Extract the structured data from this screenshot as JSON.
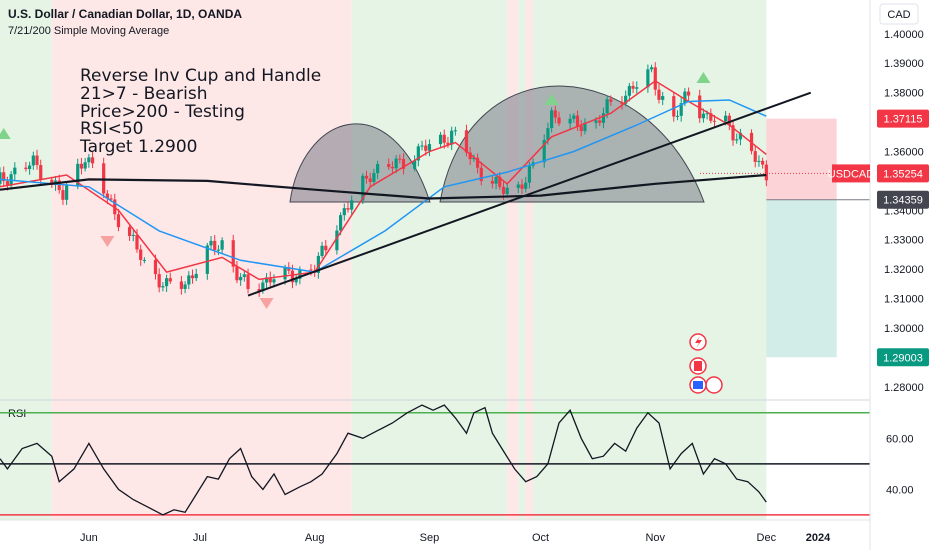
{
  "header": {
    "title": "U.S. Dollar / Canadian Dollar, 1D, OANDA",
    "indicator": "7/21/200 Simple Moving Average"
  },
  "currency": "CAD",
  "annotation_lines": [
    "Reverse Inv Cup and Handle",
    "21>7 - Bearish",
    "Price>200 - Testing",
    "RSI<50",
    "Target 1.2900"
  ],
  "price_axis": {
    "ticks": [
      "1.40000",
      "1.39000",
      "1.38000",
      "1.36000",
      "1.34000",
      "1.33000",
      "1.32000",
      "1.31000",
      "1.30000",
      "1.28000"
    ]
  },
  "price_tags": [
    {
      "label": "1.37115",
      "color": "#f23645"
    },
    {
      "symbol": "USDCAD",
      "label": "1.35254",
      "color": "#f23645"
    },
    {
      "label": "1.34359",
      "color": "#434651"
    },
    {
      "label": "1.29003",
      "color": "#089981"
    }
  ],
  "rsi": {
    "label": "RSI",
    "ticks": [
      "60.00",
      "40.00"
    ]
  },
  "time_axis": [
    "Jun",
    "Jul",
    "Aug",
    "Sep",
    "Oct",
    "Nov",
    "Dec",
    "2024"
  ],
  "colors": {
    "bull": "#089981",
    "bear": "#f23645",
    "sma7": "#f23645",
    "sma21": "#2196f3",
    "sma200": "#131722",
    "bg_bull": "#e6f4e6",
    "bg_bear": "#fde7e7"
  },
  "chart_data": [
    {
      "type": "candlestick",
      "title": "U.S. Dollar / Canadian Dollar, 1D, OANDA",
      "symbol": "USDCAD",
      "x_range": [
        "2023-05-08",
        "2023-12-29"
      ],
      "ylim": [
        1.2755,
        1.4115
      ],
      "grid": false,
      "close_series": [
        {
          "date": "2023-05-08",
          "close": 1.35
        },
        {
          "date": "2023-05-12",
          "close": 1.353
        },
        {
          "date": "2023-05-17",
          "close": 1.356
        },
        {
          "date": "2023-05-22",
          "close": 1.35
        },
        {
          "date": "2023-05-25",
          "close": 1.3445
        },
        {
          "date": "2023-05-31",
          "close": 1.359
        },
        {
          "date": "2023-06-06",
          "close": 1.344
        },
        {
          "date": "2023-06-12",
          "close": 1.331
        },
        {
          "date": "2023-06-16",
          "close": 1.322
        },
        {
          "date": "2023-06-22",
          "close": 1.314
        },
        {
          "date": "2023-06-27",
          "close": 1.315
        },
        {
          "date": "2023-07-03",
          "close": 1.326
        },
        {
          "date": "2023-07-07",
          "close": 1.329
        },
        {
          "date": "2023-07-11",
          "close": 1.3185
        },
        {
          "date": "2023-07-14",
          "close": 1.313
        },
        {
          "date": "2023-07-20",
          "close": 1.317
        },
        {
          "date": "2023-07-26",
          "close": 1.318
        },
        {
          "date": "2023-08-01",
          "close": 1.32
        },
        {
          "date": "2023-08-07",
          "close": 1.336
        },
        {
          "date": "2023-08-11",
          "close": 1.343
        },
        {
          "date": "2023-08-16",
          "close": 1.353
        },
        {
          "date": "2023-08-22",
          "close": 1.355
        },
        {
          "date": "2023-08-28",
          "close": 1.359
        },
        {
          "date": "2023-09-01",
          "close": 1.362
        },
        {
          "date": "2023-09-07",
          "close": 1.366
        },
        {
          "date": "2023-09-11",
          "close": 1.36
        },
        {
          "date": "2023-09-15",
          "close": 1.353
        },
        {
          "date": "2023-09-20",
          "close": 1.347
        },
        {
          "date": "2023-09-25",
          "close": 1.348
        },
        {
          "date": "2023-09-29",
          "close": 1.354
        },
        {
          "date": "2023-10-04",
          "close": 1.373
        },
        {
          "date": "2023-10-10",
          "close": 1.369
        },
        {
          "date": "2023-10-16",
          "close": 1.37
        },
        {
          "date": "2023-10-20",
          "close": 1.376
        },
        {
          "date": "2023-10-25",
          "close": 1.381
        },
        {
          "date": "2023-10-31",
          "close": 1.3865
        },
        {
          "date": "2023-11-02",
          "close": 1.38
        },
        {
          "date": "2023-11-06",
          "close": 1.371
        },
        {
          "date": "2023-11-10",
          "close": 1.38
        },
        {
          "date": "2023-11-15",
          "close": 1.371
        },
        {
          "date": "2023-11-20",
          "close": 1.37
        },
        {
          "date": "2023-11-24",
          "close": 1.364
        },
        {
          "date": "2023-11-28",
          "close": 1.3575
        },
        {
          "date": "2023-12-01",
          "close": 1.3525
        }
      ],
      "series": [
        {
          "name": "7",
          "type": "line",
          "points": [
            {
              "date": "2023-05-08",
              "value": 1.348
            },
            {
              "date": "2023-05-26",
              "value": 1.352
            },
            {
              "date": "2023-06-09",
              "value": 1.34
            },
            {
              "date": "2023-06-22",
              "value": 1.319
            },
            {
              "date": "2023-07-07",
              "value": 1.324
            },
            {
              "date": "2023-07-17",
              "value": 1.3165
            },
            {
              "date": "2023-08-01",
              "value": 1.319
            },
            {
              "date": "2023-08-16",
              "value": 1.348
            },
            {
              "date": "2023-09-01",
              "value": 1.36
            },
            {
              "date": "2023-09-08",
              "value": 1.363
            },
            {
              "date": "2023-09-22",
              "value": 1.349
            },
            {
              "date": "2023-10-04",
              "value": 1.365
            },
            {
              "date": "2023-10-20",
              "value": 1.373
            },
            {
              "date": "2023-11-01",
              "value": 1.384
            },
            {
              "date": "2023-11-10",
              "value": 1.377
            },
            {
              "date": "2023-11-21",
              "value": 1.369
            },
            {
              "date": "2023-12-01",
              "value": 1.359
            }
          ]
        },
        {
          "name": "21",
          "type": "line",
          "points": [
            {
              "date": "2023-05-08",
              "value": 1.3505
            },
            {
              "date": "2023-06-01",
              "value": 1.348
            },
            {
              "date": "2023-06-20",
              "value": 1.333
            },
            {
              "date": "2023-07-12",
              "value": 1.323
            },
            {
              "date": "2023-08-01",
              "value": 1.319
            },
            {
              "date": "2023-08-20",
              "value": 1.333
            },
            {
              "date": "2023-09-05",
              "value": 1.348
            },
            {
              "date": "2023-09-22",
              "value": 1.353
            },
            {
              "date": "2023-10-10",
              "value": 1.36
            },
            {
              "date": "2023-10-27",
              "value": 1.369
            },
            {
              "date": "2023-11-10",
              "value": 1.377
            },
            {
              "date": "2023-11-21",
              "value": 1.3775
            },
            {
              "date": "2023-12-01",
              "value": 1.372
            }
          ]
        },
        {
          "name": "200",
          "type": "line",
          "points": [
            {
              "date": "2023-05-08",
              "value": 1.347
            },
            {
              "date": "2023-06-01",
              "value": 1.3505
            },
            {
              "date": "2023-07-03",
              "value": 1.35
            },
            {
              "date": "2023-08-01",
              "value": 1.347
            },
            {
              "date": "2023-09-01",
              "value": 1.344
            },
            {
              "date": "2023-10-01",
              "value": 1.345
            },
            {
              "date": "2023-11-01",
              "value": 1.349
            },
            {
              "date": "2023-12-01",
              "value": 1.352
            }
          ]
        }
      ],
      "trendline": {
        "from": {
          "date": "2023-07-14",
          "value": 1.311
        },
        "to": {
          "date": "2023-12-13",
          "value": 1.38
        }
      },
      "position": {
        "entry": 1.34359,
        "stop": 1.37115,
        "target": 1.29003,
        "from": "2023-12-01",
        "to": "2023-12-20"
      },
      "signals": [
        {
          "date": "2023-05-09",
          "direction": "up"
        },
        {
          "date": "2023-06-06",
          "direction": "down"
        },
        {
          "date": "2023-07-19",
          "direction": "down"
        },
        {
          "date": "2023-10-04",
          "direction": "up"
        },
        {
          "date": "2023-11-14",
          "direction": "up"
        }
      ],
      "background_regimes": [
        {
          "from": "2023-05-08",
          "to": "2023-05-22",
          "trend": "bull"
        },
        {
          "from": "2023-05-22",
          "to": "2023-08-11",
          "trend": "bear"
        },
        {
          "from": "2023-08-11",
          "to": "2023-09-22",
          "trend": "bull"
        },
        {
          "from": "2023-09-22",
          "to": "2023-09-25",
          "trend": "bear"
        },
        {
          "from": "2023-09-25",
          "to": "2023-09-27",
          "trend": "bull"
        },
        {
          "from": "2023-09-27",
          "to": "2023-09-29",
          "trend": "bear"
        },
        {
          "from": "2023-09-29",
          "to": "2023-12-01",
          "trend": "bull"
        }
      ]
    },
    {
      "type": "line",
      "title": "RSI",
      "ylim": [
        28,
        75
      ],
      "levels": [
        70,
        50,
        30
      ],
      "series": [
        {
          "points": [
            {
              "date": "2023-05-08",
              "value": 52
            },
            {
              "date": "2023-05-10",
              "value": 48
            },
            {
              "date": "2023-05-14",
              "value": 56
            },
            {
              "date": "2023-05-18",
              "value": 58
            },
            {
              "date": "2023-05-22",
              "value": 53
            },
            {
              "date": "2023-05-24",
              "value": 43
            },
            {
              "date": "2023-05-28",
              "value": 48
            },
            {
              "date": "2023-06-01",
              "value": 58
            },
            {
              "date": "2023-06-05",
              "value": 48
            },
            {
              "date": "2023-06-09",
              "value": 40
            },
            {
              "date": "2023-06-13",
              "value": 36
            },
            {
              "date": "2023-06-17",
              "value": 33
            },
            {
              "date": "2023-06-21",
              "value": 30
            },
            {
              "date": "2023-06-24",
              "value": 32
            },
            {
              "date": "2023-06-27",
              "value": 31
            },
            {
              "date": "2023-06-30",
              "value": 38
            },
            {
              "date": "2023-07-03",
              "value": 45
            },
            {
              "date": "2023-07-06",
              "value": 44
            },
            {
              "date": "2023-07-09",
              "value": 52
            },
            {
              "date": "2023-07-12",
              "value": 56
            },
            {
              "date": "2023-07-15",
              "value": 45
            },
            {
              "date": "2023-07-18",
              "value": 40
            },
            {
              "date": "2023-07-21",
              "value": 46
            },
            {
              "date": "2023-07-24",
              "value": 38
            },
            {
              "date": "2023-07-28",
              "value": 41
            },
            {
              "date": "2023-07-31",
              "value": 43
            },
            {
              "date": "2023-08-03",
              "value": 46
            },
            {
              "date": "2023-08-07",
              "value": 54
            },
            {
              "date": "2023-08-10",
              "value": 62
            },
            {
              "date": "2023-08-14",
              "value": 60
            },
            {
              "date": "2023-08-18",
              "value": 63
            },
            {
              "date": "2023-08-22",
              "value": 66
            },
            {
              "date": "2023-08-26",
              "value": 70
            },
            {
              "date": "2023-08-30",
              "value": 73
            },
            {
              "date": "2023-09-02",
              "value": 71
            },
            {
              "date": "2023-09-05",
              "value": 73
            },
            {
              "date": "2023-09-08",
              "value": 68
            },
            {
              "date": "2023-09-11",
              "value": 62
            },
            {
              "date": "2023-09-13",
              "value": 70
            },
            {
              "date": "2023-09-16",
              "value": 72
            },
            {
              "date": "2023-09-18",
              "value": 62
            },
            {
              "date": "2023-09-21",
              "value": 55
            },
            {
              "date": "2023-09-24",
              "value": 48
            },
            {
              "date": "2023-09-27",
              "value": 43
            },
            {
              "date": "2023-09-30",
              "value": 45
            },
            {
              "date": "2023-10-03",
              "value": 50
            },
            {
              "date": "2023-10-06",
              "value": 66
            },
            {
              "date": "2023-10-09",
              "value": 71
            },
            {
              "date": "2023-10-12",
              "value": 60
            },
            {
              "date": "2023-10-15",
              "value": 52
            },
            {
              "date": "2023-10-18",
              "value": 53
            },
            {
              "date": "2023-10-21",
              "value": 58
            },
            {
              "date": "2023-10-24",
              "value": 55
            },
            {
              "date": "2023-10-27",
              "value": 64
            },
            {
              "date": "2023-10-30",
              "value": 70
            },
            {
              "date": "2023-11-02",
              "value": 66
            },
            {
              "date": "2023-11-05",
              "value": 48
            },
            {
              "date": "2023-11-08",
              "value": 54
            },
            {
              "date": "2023-11-11",
              "value": 58
            },
            {
              "date": "2023-11-14",
              "value": 46
            },
            {
              "date": "2023-11-17",
              "value": 52
            },
            {
              "date": "2023-11-20",
              "value": 50
            },
            {
              "date": "2023-11-23",
              "value": 44
            },
            {
              "date": "2023-11-26",
              "value": 43
            },
            {
              "date": "2023-11-29",
              "value": 39
            },
            {
              "date": "2023-12-01",
              "value": 35
            }
          ]
        }
      ]
    }
  ]
}
